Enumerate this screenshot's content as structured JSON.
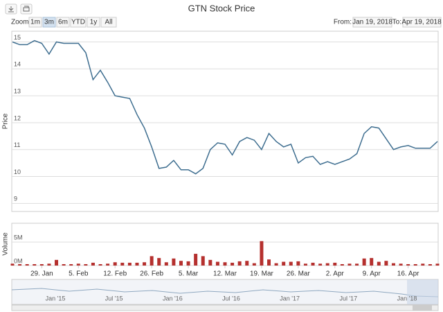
{
  "toolbar": {
    "zoom_label": "Zoom",
    "buttons": [
      "1m",
      "3m",
      "6m",
      "YTD",
      "1y",
      "All"
    ],
    "active_button": 1,
    "from_label": "From:",
    "from_date": "Jan 19, 2018",
    "to_label": "To:",
    "to_date": "Apr 19, 2018"
  },
  "chart_data": [
    {
      "type": "line",
      "title": "GTN Stock Price",
      "y_label": "Price",
      "color": "#3d6d8f",
      "values": [
        15.0,
        14.9,
        14.9,
        15.05,
        14.95,
        14.55,
        15.0,
        14.95,
        14.95,
        14.95,
        14.6,
        13.6,
        13.95,
        13.5,
        13.0,
        12.95,
        12.9,
        12.3,
        11.8,
        11.1,
        10.3,
        10.35,
        10.6,
        10.25,
        10.25,
        10.1,
        10.3,
        11.0,
        11.25,
        11.2,
        10.8,
        11.3,
        11.45,
        11.35,
        11.0,
        11.6,
        11.3,
        11.1,
        11.2,
        10.5,
        10.7,
        10.75,
        10.45,
        10.55,
        10.45,
        10.55,
        10.65,
        10.85,
        11.6,
        11.85,
        11.8,
        11.4,
        11.0,
        11.1,
        11.15,
        11.05,
        11.05,
        11.05,
        11.3
      ],
      "ylim": [
        8.7,
        15.4
      ],
      "yticks": [
        9,
        10,
        11,
        12,
        13,
        14,
        15
      ],
      "grid": true
    },
    {
      "type": "bar",
      "y_label": "Volume",
      "color": "#b5302e",
      "categories": [
        null,
        null,
        null,
        null,
        "29. Jan",
        null,
        null,
        null,
        null,
        "5. Feb",
        null,
        null,
        null,
        null,
        "12. Feb",
        null,
        null,
        null,
        null,
        "26. Feb",
        null,
        null,
        null,
        null,
        "5. Mar",
        null,
        null,
        null,
        null,
        "12. Mar",
        null,
        null,
        null,
        null,
        "19. Mar",
        null,
        null,
        null,
        null,
        "26. Mar",
        null,
        null,
        null,
        null,
        "2. Apr",
        null,
        null,
        null,
        null,
        "9. Apr",
        null,
        null,
        null,
        null,
        "16. Apr",
        null,
        null,
        null,
        null
      ],
      "values": [
        400000,
        300000,
        300000,
        300000,
        300000,
        400000,
        1200000,
        300000,
        300000,
        400000,
        300000,
        600000,
        300000,
        400000,
        700000,
        600000,
        600000,
        600000,
        700000,
        2000000,
        1600000,
        700000,
        1500000,
        1000000,
        900000,
        2500000,
        2000000,
        1200000,
        800000,
        700000,
        600000,
        900000,
        1000000,
        500000,
        5200000,
        1300000,
        500000,
        800000,
        800000,
        900000,
        400000,
        600000,
        400000,
        500000,
        600000,
        300000,
        400000,
        400000,
        1500000,
        1600000,
        800000,
        1000000,
        500000,
        400000,
        300000,
        300000,
        400000,
        300000,
        400000
      ],
      "ylim": [
        0,
        9000000
      ],
      "yticks": [
        {
          "value": 0,
          "label": "0M"
        },
        {
          "value": 5000000,
          "label": "5M"
        }
      ],
      "grid": true
    }
  ],
  "navigator": {
    "labels": [
      "Jan '15",
      "Jul '15",
      "Jan '16",
      "Jul '16",
      "Jan '17",
      "Jul '17",
      "Jan '18"
    ]
  }
}
